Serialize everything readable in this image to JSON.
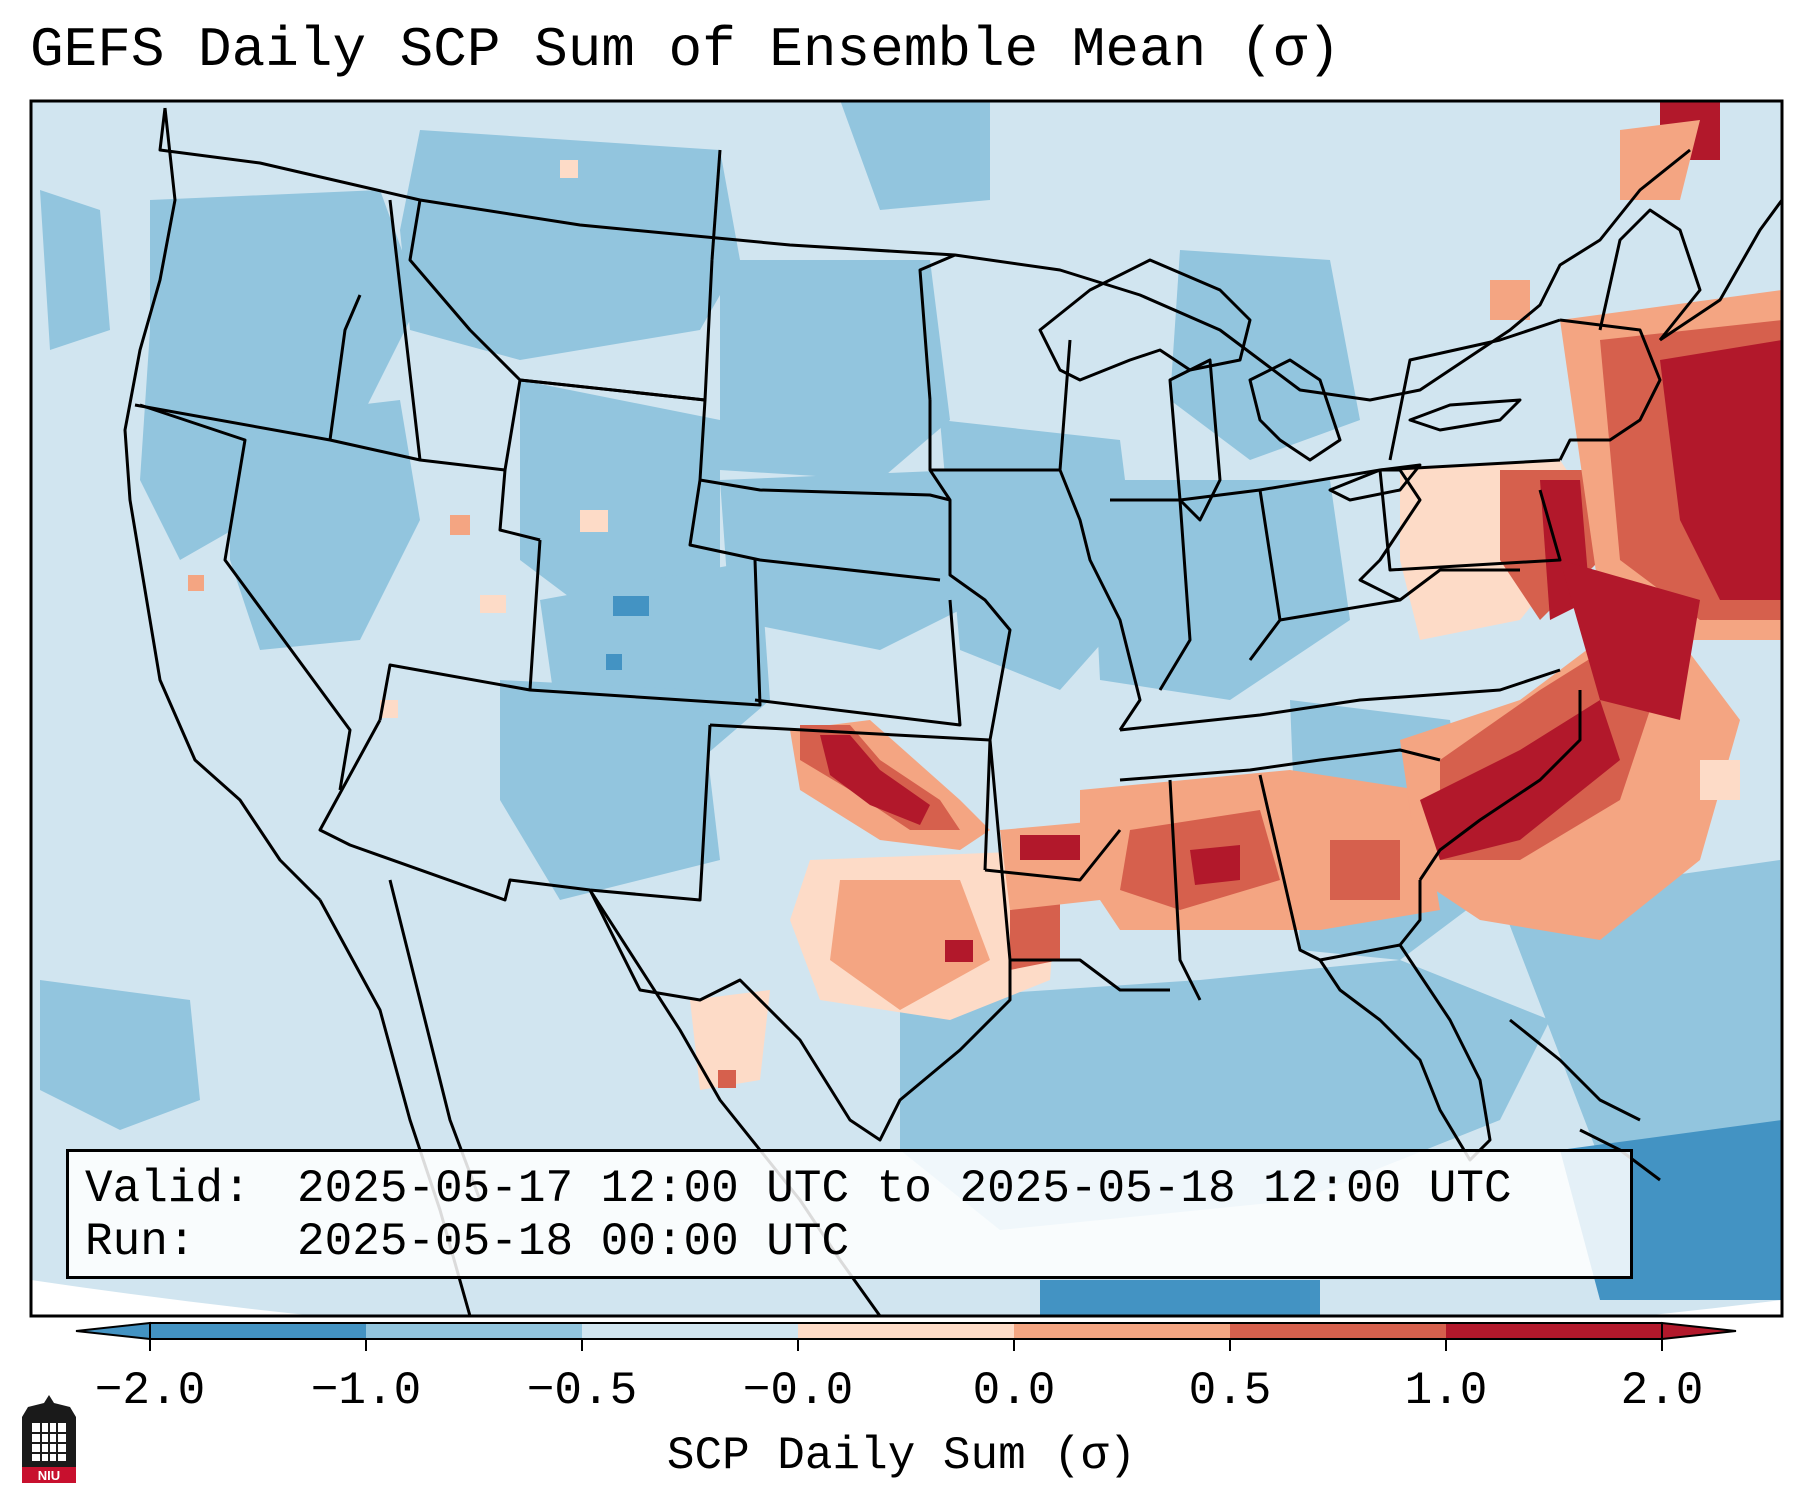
{
  "title": "GEFS Daily SCP Sum of Ensemble Mean (σ)",
  "info": {
    "valid_label": "Valid:",
    "valid_value": "2025-05-17 12:00 UTC to 2025-05-18 12:00 UTC",
    "run_label": "Run:",
    "run_value": "2025-05-18 00:00 UTC"
  },
  "colorbar": {
    "label": "SCP Daily Sum (σ)",
    "ticks": [
      "−2.0",
      "−1.0",
      "−0.5",
      "−0.0",
      "0.0",
      "0.5",
      "1.0",
      "2.0"
    ],
    "colors": [
      "#4393c3",
      "#92c5de",
      "#d1e5f0",
      "#fddbc7",
      "#f4a582",
      "#d6604d",
      "#b2182b"
    ],
    "extend": "both"
  },
  "map": {
    "ocean_color": "#d1e5f0",
    "base_color": "#d1e5f0",
    "region": "Contiguous United States",
    "border_color": "#000000"
  },
  "logo": {
    "text": "NIU"
  }
}
